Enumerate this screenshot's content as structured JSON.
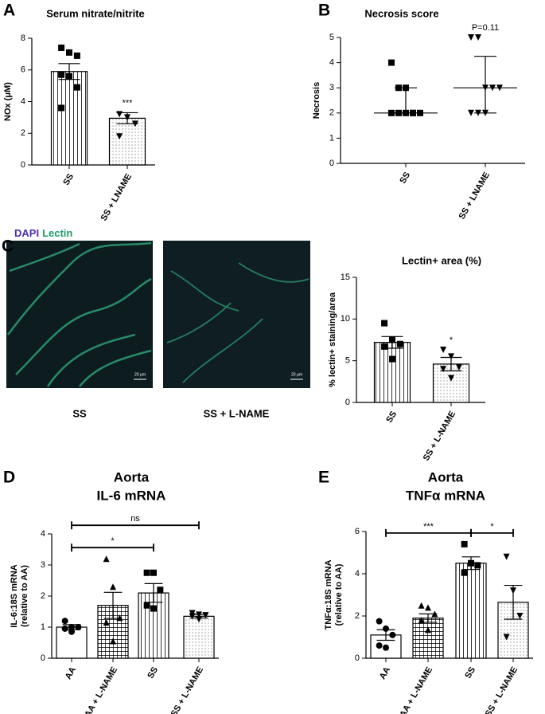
{
  "chart_data": [
    {
      "type": "bar",
      "panel": "A",
      "title": "Serum nitrate/nitrite",
      "ylabel": [
        "NOx  (μM)"
      ],
      "categories": [
        "SS",
        "SS + LNAME"
      ],
      "values": [
        5.9,
        2.95
      ],
      "errors": [
        0.5,
        0.35
      ],
      "patterns": [
        "vlines",
        "dots"
      ],
      "markers": [
        "square",
        "triangle-down"
      ],
      "points": [
        [
          7.4,
          7.1,
          6.9,
          5.7,
          5.6,
          4.9,
          3.6
        ],
        [
          3.2,
          3.0,
          2.6,
          1.8
        ]
      ],
      "annotations": [
        null,
        "***"
      ],
      "color": "#000000",
      "ylim": [
        0,
        8
      ],
      "yticks": [
        0,
        2,
        4,
        6,
        8
      ]
    },
    {
      "type": "scatter",
      "panel": "B",
      "title": "Necrosis score",
      "ylabel": [
        "Necrosis"
      ],
      "categories": [
        "SS",
        "SS + LNAME"
      ],
      "values": [
        2,
        3
      ],
      "range": [
        [
          2,
          3
        ],
        [
          2,
          4.25
        ]
      ],
      "markers": [
        "square",
        "triangle-down"
      ],
      "points": [
        [
          4,
          3,
          3,
          2,
          2,
          2,
          2,
          2,
          2
        ],
        [
          5,
          5,
          3,
          3,
          3,
          2,
          2,
          2
        ]
      ],
      "annotations": [
        null,
        "P=0.11"
      ],
      "color": "#000000",
      "ylim": [
        0,
        5
      ],
      "yticks": [
        0,
        1,
        2,
        3,
        4,
        5
      ]
    },
    {
      "type": "bar",
      "panel": "C",
      "title": "Lectin+ area (%)",
      "ylabel": [
        "% lectin+ staining/area"
      ],
      "categories": [
        "SS",
        "SS + L-NAME"
      ],
      "values": [
        7.2,
        4.6
      ],
      "errors": [
        0.7,
        0.8
      ],
      "patterns": [
        "vlines",
        "dots"
      ],
      "markers": [
        "square",
        "triangle-down"
      ],
      "points": [
        [
          9.5,
          7.5,
          7.0,
          6.7,
          5.2
        ],
        [
          6.3,
          5.5,
          4.2,
          4.0,
          2.9
        ]
      ],
      "annotations": [
        null,
        "*"
      ],
      "color": "#000000",
      "ylim": [
        0,
        15
      ],
      "yticks": [
        0,
        5,
        10,
        15
      ],
      "images": {
        "stains": [
          "DAPI",
          "Lectin"
        ],
        "stain_colors": [
          "#4a2fb0",
          "#1e9e6a"
        ],
        "labels": [
          "SS",
          "SS + L-NAME"
        ],
        "scale": "20 μm"
      }
    },
    {
      "type": "bar",
      "panel": "D",
      "title": "Aorta",
      "subtitle": "IL-6 mRNA",
      "ylabel": [
        "IL-6:18S mRNA",
        "(relative to AA)"
      ],
      "categories": [
        "AA",
        "AA + L-NAME",
        "SS",
        "SS + L-NAME"
      ],
      "values": [
        1.0,
        1.7,
        2.1,
        1.35
      ],
      "errors": [
        0.08,
        0.42,
        0.3,
        0.06
      ],
      "patterns": [
        "none",
        "grid",
        "vlines",
        "dots"
      ],
      "markers": [
        "circle",
        "triangle-up",
        "square",
        "triangle-down"
      ],
      "points": [
        [
          1.2,
          1.0,
          1.0,
          0.95,
          0.85
        ],
        [
          3.2,
          2.3,
          1.3,
          1.15,
          0.55
        ],
        [
          2.75,
          2.75,
          2.2,
          1.7,
          1.6
        ],
        [
          1.45,
          1.4,
          1.38,
          1.35,
          1.25
        ]
      ],
      "comparisons": [
        {
          "between": [
            "AA",
            "SS"
          ],
          "label": "*"
        },
        {
          "between": [
            "AA",
            "SS + L-NAME"
          ],
          "label": "ns"
        }
      ],
      "color": "#000000",
      "ylim": [
        0,
        4
      ],
      "yticks": [
        0,
        1,
        2,
        3,
        4
      ]
    },
    {
      "type": "bar",
      "panel": "E",
      "title": "Aorta",
      "subtitle": "TNFα mRNA",
      "ylabel": [
        "TNFα:18S mRNA",
        "(relative to AA)"
      ],
      "categories": [
        "AA",
        "AA + L-NAME",
        "SS",
        "SS + L-NAME"
      ],
      "values": [
        1.1,
        1.9,
        4.5,
        2.65
      ],
      "errors": [
        0.25,
        0.2,
        0.3,
        0.8
      ],
      "patterns": [
        "none",
        "grid",
        "vlines",
        "dots"
      ],
      "markers": [
        "circle",
        "triangle-up",
        "square",
        "triangle-down"
      ],
      "points": [
        [
          1.75,
          1.4,
          1.1,
          0.6,
          0.5
        ],
        [
          2.5,
          2.4,
          2.1,
          1.8,
          1.35
        ],
        [
          5.4,
          4.5,
          4.4,
          4.05
        ],
        [
          4.8,
          3.2,
          2.0,
          1.0
        ]
      ],
      "comparisons": [
        {
          "between": [
            "AA",
            "SS"
          ],
          "label": "***"
        },
        {
          "between": [
            "SS",
            "SS + L-NAME"
          ],
          "label": "*"
        }
      ],
      "color": "#000000",
      "ylim": [
        0,
        6
      ],
      "yticks": [
        0,
        2,
        4,
        6
      ]
    }
  ]
}
